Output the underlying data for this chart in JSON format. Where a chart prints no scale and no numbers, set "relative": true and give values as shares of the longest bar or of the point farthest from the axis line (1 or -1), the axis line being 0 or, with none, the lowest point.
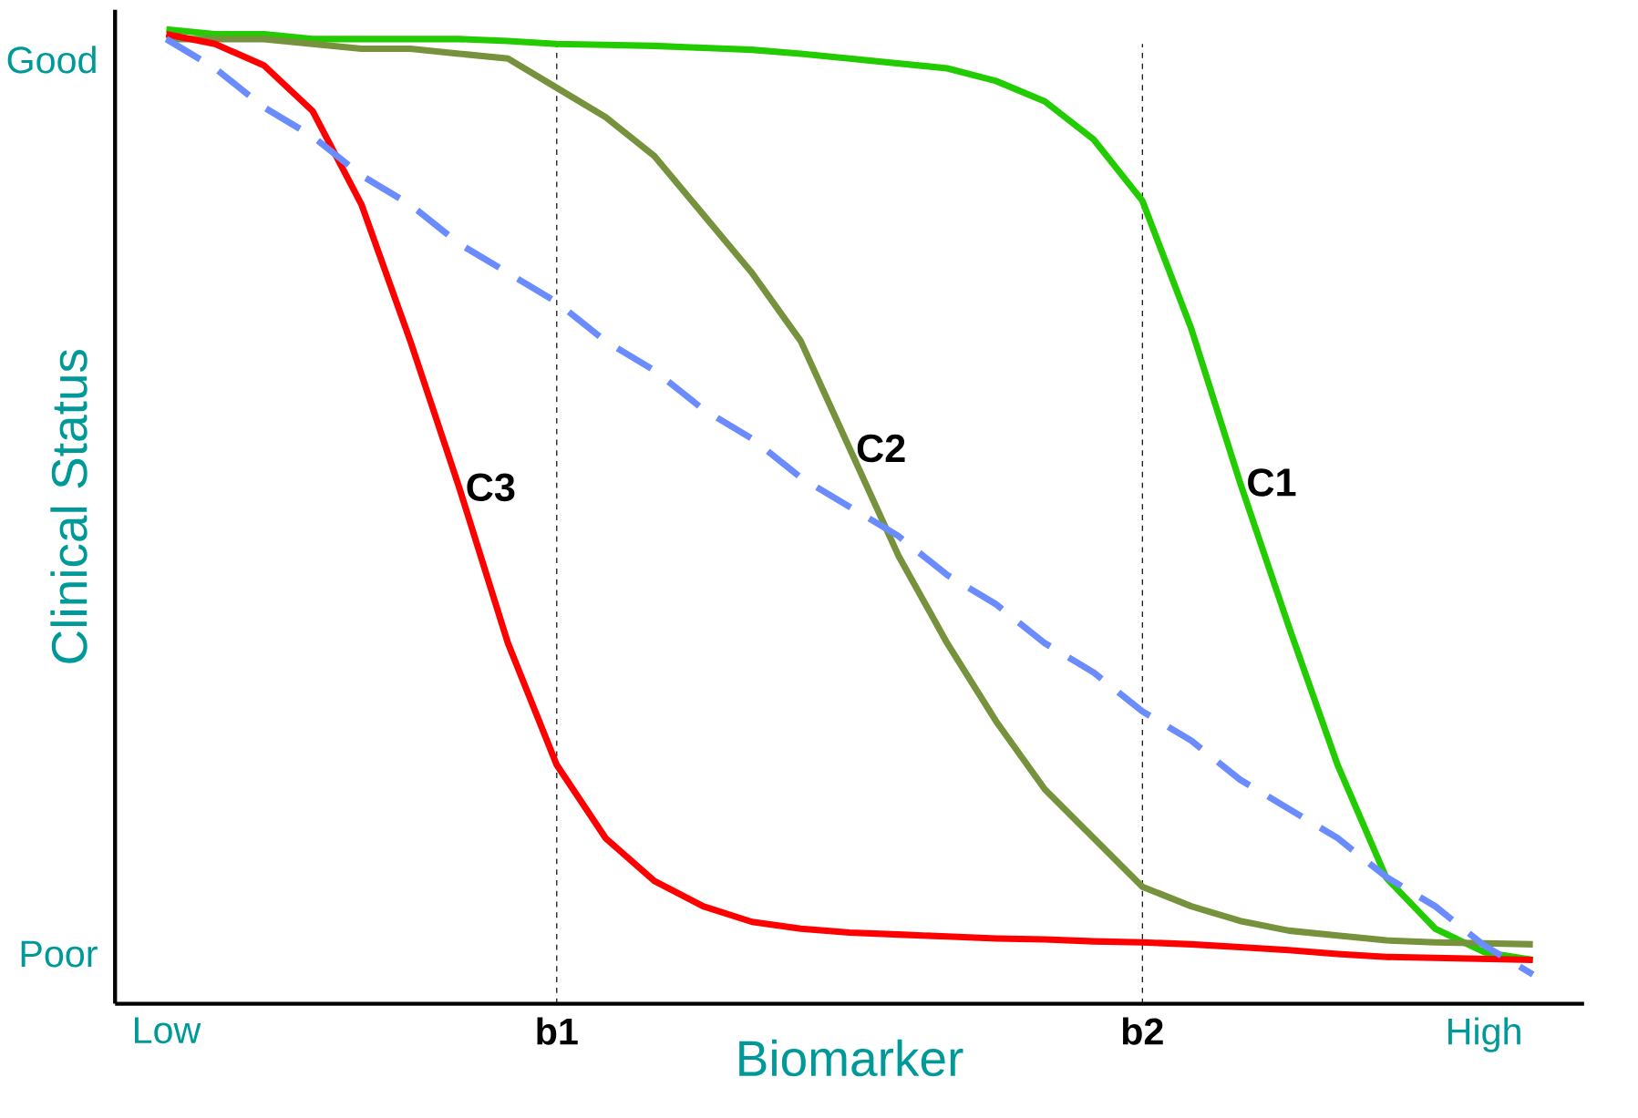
{
  "chart_data": {
    "type": "line",
    "relative": true,
    "xlabel": "Biomarker",
    "ylabel": "Clinical Status",
    "categories": [
      "Low",
      null,
      null,
      null,
      null,
      null,
      null,
      null,
      "b1",
      null,
      null,
      null,
      null,
      null,
      null,
      null,
      null,
      null,
      null,
      null,
      "b2",
      null,
      null,
      null,
      null,
      null,
      null,
      "High",
      null
    ],
    "series": [
      {
        "name": "C1",
        "color": "#22cc00",
        "values": [
          1.0,
          0.995,
          0.995,
          0.99,
          0.99,
          0.99,
          0.99,
          0.988,
          0.985,
          0.984,
          0.983,
          0.981,
          0.979,
          0.975,
          0.97,
          0.965,
          0.96,
          0.947,
          0.926,
          0.887,
          0.824,
          0.693,
          0.535,
          0.387,
          0.245,
          0.129,
          0.077,
          0.053,
          0.045
        ]
      },
      {
        "name": "C2",
        "color": "#76923c",
        "values": [
          0.99,
          0.99,
          0.99,
          0.985,
          0.98,
          0.98,
          0.975,
          0.97,
          0.94,
          0.91,
          0.87,
          0.81,
          0.75,
          0.68,
          0.57,
          0.46,
          0.37,
          0.29,
          0.22,
          0.17,
          0.12,
          0.1,
          0.085,
          0.075,
          0.07,
          0.065,
          0.063,
          0.062,
          0.061
        ]
      },
      {
        "name": "C3",
        "color": "#ff0000",
        "values": [
          0.995,
          0.985,
          0.963,
          0.916,
          0.82,
          0.68,
          0.53,
          0.37,
          0.245,
          0.17,
          0.126,
          0.1,
          0.084,
          0.077,
          0.073,
          0.071,
          0.069,
          0.067,
          0.066,
          0.064,
          0.063,
          0.061,
          0.058,
          0.055,
          0.051,
          0.048,
          0.047,
          0.046,
          0.045
        ]
      },
      {
        "color": "#6b8cff",
        "line_style": "dashed",
        "values": [
          0.99,
          0.96,
          0.92,
          0.89,
          0.85,
          0.82,
          0.78,
          0.75,
          0.72,
          0.68,
          0.65,
          0.61,
          0.58,
          0.54,
          0.51,
          0.48,
          0.44,
          0.41,
          0.37,
          0.34,
          0.3,
          0.27,
          0.23,
          0.2,
          0.17,
          0.13,
          0.1,
          0.06,
          0.03
        ]
      }
    ],
    "ref_lines": [
      {
        "axis": "x",
        "value": "b1",
        "line_style": "dashed"
      },
      {
        "axis": "x",
        "value": "b2",
        "line_style": "dashed"
      }
    ],
    "annotations": [
      "Good",
      "Poor"
    ]
  }
}
